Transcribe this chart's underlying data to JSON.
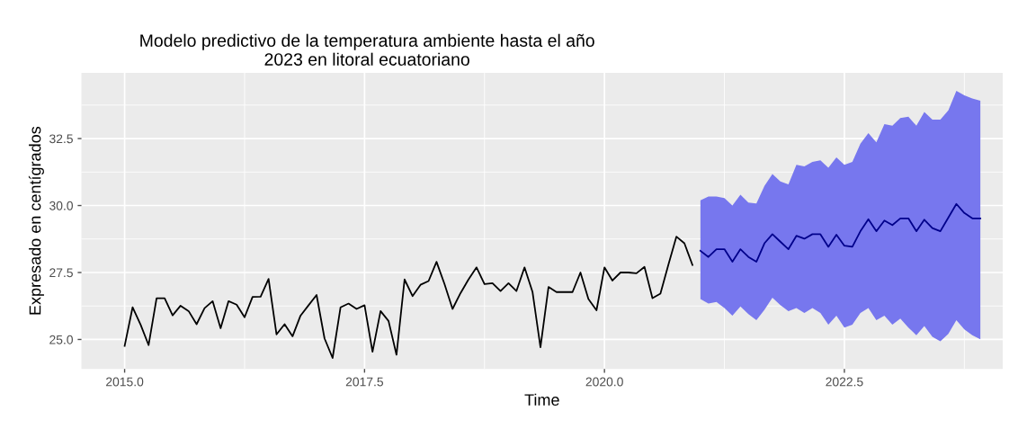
{
  "chart_data": {
    "type": "line",
    "title": "Modelo predictivo de la temperatura ambiente hasta el año\n2023 en litoral ecuatoriano",
    "xlabel": "Time",
    "ylabel": "Expresado en centígrados",
    "xlim": [
      2014.55,
      2024.15
    ],
    "ylim": [
      23.9,
      34.95
    ],
    "xticks": [
      {
        "value": 2015,
        "label": "2015.0"
      },
      {
        "value": 2017.5,
        "label": "2017.5"
      },
      {
        "value": 2020,
        "label": "2020.0"
      },
      {
        "value": 2022.5,
        "label": "2022.5"
      }
    ],
    "yticks": [
      {
        "value": 25,
        "label": "25.0"
      },
      {
        "value": 27.5,
        "label": "27.5"
      },
      {
        "value": 30,
        "label": "30.0"
      },
      {
        "value": 32.5,
        "label": "32.5"
      }
    ],
    "grid": true,
    "marker": "none",
    "line_style": "solid",
    "series": [
      {
        "color": "#000000",
        "x": [
          2015.0,
          2015.083,
          2015.167,
          2015.25,
          2015.333,
          2015.417,
          2015.5,
          2015.583,
          2015.667,
          2015.75,
          2015.833,
          2015.917,
          2016.0,
          2016.083,
          2016.167,
          2016.25,
          2016.333,
          2016.417,
          2016.5,
          2016.583,
          2016.667,
          2016.75,
          2016.833,
          2016.917,
          2017.0,
          2017.083,
          2017.167,
          2017.25,
          2017.333,
          2017.417,
          2017.5,
          2017.583,
          2017.667,
          2017.75,
          2017.833,
          2017.917,
          2018.0,
          2018.083,
          2018.167,
          2018.25,
          2018.333,
          2018.417,
          2018.5,
          2018.583,
          2018.667,
          2018.75,
          2018.833,
          2018.917,
          2019.0,
          2019.083,
          2019.167,
          2019.25,
          2019.333,
          2019.417,
          2019.5,
          2019.583,
          2019.667,
          2019.75,
          2019.833,
          2019.917,
          2020.0,
          2020.083,
          2020.167,
          2020.25,
          2020.333,
          2020.417,
          2020.5,
          2020.583,
          2020.667,
          2020.75,
          2020.833,
          2020.917
        ],
        "values": [
          24.76,
          26.2,
          25.55,
          24.79,
          26.54,
          26.54,
          25.9,
          26.26,
          26.06,
          25.57,
          26.17,
          26.43,
          25.42,
          26.43,
          26.3,
          25.83,
          26.59,
          26.6,
          27.26,
          25.19,
          25.57,
          25.12,
          25.89,
          26.28,
          26.66,
          25.04,
          24.31,
          26.2,
          26.34,
          26.14,
          26.28,
          24.54,
          26.06,
          25.69,
          24.43,
          27.24,
          26.62,
          27.04,
          27.18,
          27.9,
          27.07,
          26.14,
          26.73,
          27.24,
          27.69,
          27.07,
          27.1,
          26.81,
          27.1,
          26.81,
          27.69,
          26.78,
          24.71,
          26.96,
          26.77,
          26.77,
          26.77,
          27.5,
          26.51,
          26.09,
          27.69,
          27.2,
          27.5,
          27.5,
          27.47,
          27.71,
          26.54,
          26.71,
          27.8,
          28.84,
          28.59,
          27.78
        ]
      },
      {
        "color": "#00008b",
        "x": [
          2021.0,
          2021.083,
          2021.167,
          2021.25,
          2021.333,
          2021.417,
          2021.5,
          2021.583,
          2021.667,
          2021.75,
          2021.833,
          2021.917,
          2022.0,
          2022.083,
          2022.167,
          2022.25,
          2022.333,
          2022.417,
          2022.5,
          2022.583,
          2022.667,
          2022.75,
          2022.833,
          2022.917,
          2023.0,
          2023.083,
          2023.167,
          2023.25,
          2023.333,
          2023.417,
          2023.5,
          2023.583,
          2023.667,
          2023.75,
          2023.833,
          2023.917
        ],
        "values": [
          28.31,
          28.08,
          28.37,
          28.37,
          27.9,
          28.37,
          28.08,
          27.9,
          28.59,
          28.93,
          28.65,
          28.37,
          28.87,
          28.76,
          28.93,
          28.93,
          28.46,
          28.91,
          28.5,
          28.46,
          29.04,
          29.49,
          29.04,
          29.44,
          29.27,
          29.52,
          29.52,
          29.04,
          29.47,
          29.16,
          29.04,
          29.55,
          30.06,
          29.72,
          29.52,
          29.52
        ],
        "lower": [
          26.51,
          26.34,
          26.4,
          26.17,
          25.89,
          26.23,
          25.95,
          25.72,
          26.11,
          26.56,
          26.28,
          26.06,
          26.17,
          25.99,
          26.17,
          25.99,
          25.55,
          25.89,
          25.44,
          25.55,
          25.99,
          26.17,
          25.72,
          25.89,
          25.55,
          25.78,
          25.44,
          25.16,
          25.5,
          25.1,
          24.93,
          25.21,
          25.72,
          25.38,
          25.16,
          25.01
        ],
        "upper": [
          30.19,
          30.34,
          30.34,
          30.28,
          30.0,
          30.4,
          30.11,
          30.08,
          30.73,
          31.18,
          30.9,
          30.79,
          31.52,
          31.46,
          31.63,
          31.69,
          31.41,
          31.8,
          31.52,
          31.63,
          32.31,
          32.7,
          32.36,
          33.04,
          32.98,
          33.27,
          33.32,
          32.98,
          33.49,
          33.21,
          33.21,
          33.55,
          34.28,
          34.11,
          34.0,
          33.91
        ]
      }
    ]
  }
}
